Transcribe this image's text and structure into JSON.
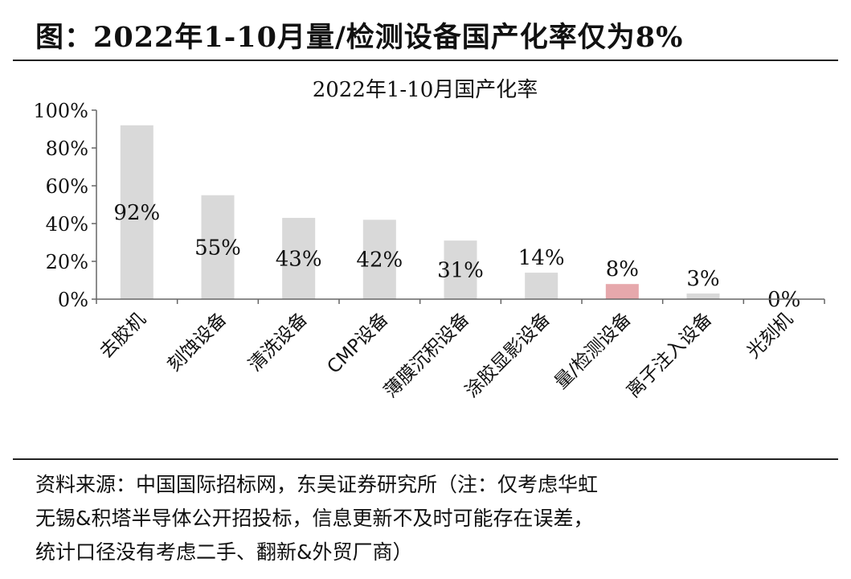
{
  "figure": {
    "title": "图：2022年1-10月量/检测设备国产化率仅为8%"
  },
  "chart_data": {
    "type": "bar",
    "title": "2022年1-10月国产化率",
    "categories": [
      "去胶机",
      "刻蚀设备",
      "清洗设备",
      "CMP设备",
      "薄膜沉积设备",
      "涂胶显影设备",
      "量/检测设备",
      "离子注入设备",
      "光刻机"
    ],
    "values": [
      92,
      55,
      43,
      42,
      31,
      14,
      8,
      3,
      0
    ],
    "value_labels": [
      "92%",
      "55%",
      "43%",
      "42%",
      "31%",
      "14%",
      "8%",
      "3%",
      "0%"
    ],
    "ylim": [
      0,
      100
    ],
    "yticks": [
      0,
      20,
      40,
      60,
      80,
      100
    ],
    "ytick_labels": [
      "0%",
      "20%",
      "40%",
      "60%",
      "80%",
      "100%"
    ],
    "grid": false,
    "colors": {
      "default": "#d9d9d9",
      "highlight": "#e6a8ac",
      "highlight_index": 6
    }
  },
  "source": {
    "lines": [
      "资料来源：中国国际招标网，东吴证券研究所（注：仅考虑华虹",
      "无锡&积塔半导体公开招投标，信息更新不及时可能存在误差，",
      "统计口径没有考虑二手、翻新&外贸厂商）"
    ]
  }
}
